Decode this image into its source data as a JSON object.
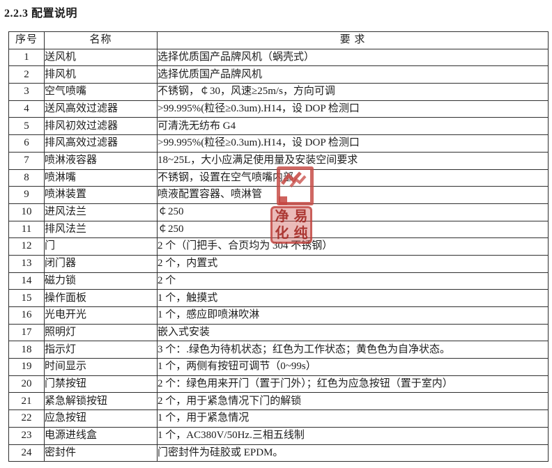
{
  "page": {
    "title": "2.2.3 配置说明"
  },
  "table": {
    "headers": [
      "序号",
      "名称",
      "要 求"
    ],
    "rows": [
      {
        "no": "1",
        "name": "送风机",
        "req": "选择优质国产品牌风机（蜗壳式）"
      },
      {
        "no": "2",
        "name": "排风机",
        "req": "选择优质国产品牌风机"
      },
      {
        "no": "3",
        "name": "空气喷嘴",
        "req": "不锈钢，￠30，风速≥25m/s，方向可调"
      },
      {
        "no": "4",
        "name": "送风高效过滤器",
        "req": ">99.995%(粒径≥0.3um).H14，设 DOP 检测口"
      },
      {
        "no": "5",
        "name": "排风初效过滤器",
        "req": "可清洗无纺布 G4"
      },
      {
        "no": "6",
        "name": "排风高效过滤器",
        "req": ">99.995%(粒径≥0.3um).H14，设 DOP 检测口"
      },
      {
        "no": "7",
        "name": "喷淋液容器",
        "req": "18~25L，大小应满足使用量及安装空间要求"
      },
      {
        "no": "8",
        "name": "喷淋嘴",
        "req": "不锈钢，设置在空气喷嘴内部"
      },
      {
        "no": "9",
        "name": "喷淋装置",
        "req": "喷液配置容器、喷淋管"
      },
      {
        "no": "10",
        "name": "进风法兰",
        "req": "￠250"
      },
      {
        "no": "11",
        "name": "排风法兰",
        "req": "￠250"
      },
      {
        "no": "12",
        "name": "门",
        "req": "2 个（门把手、合页均为 304 不锈钢）"
      },
      {
        "no": "13",
        "name": "闭门器",
        "req": "2 个，内置式"
      },
      {
        "no": "14",
        "name": "磁力锁",
        "req": "2 个"
      },
      {
        "no": "15",
        "name": "操作面板",
        "req": "1 个，触摸式"
      },
      {
        "no": "16",
        "name": "光电开光",
        "req": "1 个，感应即喷淋吹淋"
      },
      {
        "no": "17",
        "name": "照明灯",
        "req": "嵌入式安装"
      },
      {
        "no": "18",
        "name": "指示灯",
        "req": "3 个：.绿色为待机状态；红色为工作状态；黄色色为自净状态。"
      },
      {
        "no": "19",
        "name": "时间显示",
        "req": "1 个，两侧有按钮可调节（0~99s）"
      },
      {
        "no": "20",
        "name": "门禁按钮",
        "req": "2 个：绿色用来开门（置于门外）；红色为应急按钮（置于室内）"
      },
      {
        "no": "21",
        "name": "紧急解锁按钮",
        "req": "2 个，用于紧急情况下门的解锁"
      },
      {
        "no": "22",
        "name": "应急按钮",
        "req": "1 个，用于紧急情况"
      },
      {
        "no": "23",
        "name": "电源进线盒",
        "req": "1 个，AC380V/50Hz.三相五线制"
      },
      {
        "no": "24",
        "name": "密封件",
        "req": "门密封件为硅胶或 EPDM。"
      }
    ]
  },
  "watermark": {
    "color": "#c54741",
    "seal_chars": [
      "净",
      "易",
      "化",
      "纯"
    ]
  }
}
